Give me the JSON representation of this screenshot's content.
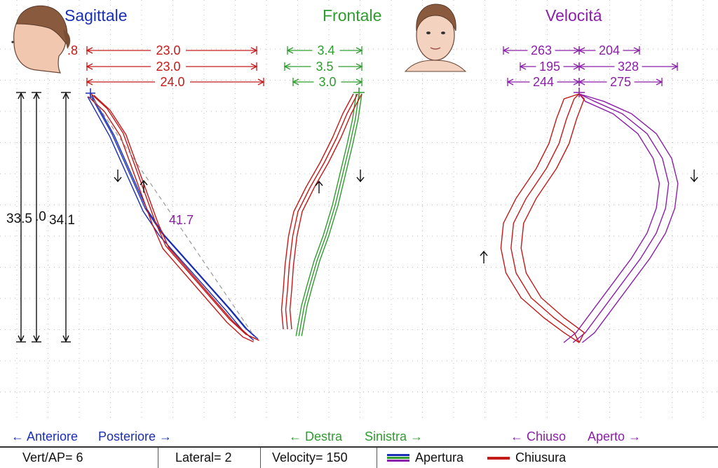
{
  "colors": {
    "sagittal": "#1b2fb5",
    "frontal": "#2e9c2e",
    "velocity": "#8b1fa8",
    "red": "#c41a1a",
    "grid": "#bdbdbd",
    "black": "#111111",
    "dashed": "#9a9a9a"
  },
  "titles": {
    "sagittal": "Sagittale",
    "frontal": "Frontale",
    "velocity": "Velocitá"
  },
  "chart_data": [
    {
      "type": "line",
      "title": "Sagittale",
      "measures_rows": [
        {
          "left": ".8",
          "right": "23.0"
        },
        {
          "right": "23.0"
        },
        {
          "right": "24.0"
        }
      ],
      "vertical_measures": [
        "33.5",
        ".0",
        "34.1"
      ],
      "diagonal_measure": "41.7",
      "direction_labels": [
        "← Anteriore",
        "Posteriore →"
      ],
      "series": [
        {
          "name": "Apertura",
          "trace": [
            [
              0,
              0
            ],
            [
              2,
              4
            ],
            [
              4,
              8
            ],
            [
              6,
              13
            ],
            [
              8,
              18
            ],
            [
              10,
              23
            ],
            [
              13,
              28
            ],
            [
              17,
              33
            ],
            [
              21,
              38
            ],
            [
              25,
              43
            ],
            [
              28,
              47
            ],
            [
              30,
              49
            ]
          ]
        },
        {
          "name": "Chiusura",
          "trace": [
            [
              0,
              0
            ],
            [
              3,
              3
            ],
            [
              6,
              8
            ],
            [
              8,
              14
            ],
            [
              10,
              20
            ],
            [
              12,
              26
            ],
            [
              14,
              31
            ],
            [
              18,
              36
            ],
            [
              22,
              41
            ],
            [
              26,
              46
            ],
            [
              29,
              49
            ],
            [
              31,
              50
            ]
          ]
        }
      ]
    },
    {
      "type": "line",
      "title": "Frontale",
      "measures_rows": [
        {
          "right": "3.4"
        },
        {
          "right": "3.5"
        },
        {
          "right": "3.0"
        }
      ],
      "direction_labels": [
        "← Destra",
        "Sinistra →"
      ],
      "series": [
        {
          "name": "Apertura",
          "trace": [
            [
              0,
              0
            ],
            [
              -0.2,
              5
            ],
            [
              -0.5,
              10
            ],
            [
              -0.9,
              16
            ],
            [
              -1.3,
              22
            ],
            [
              -1.8,
              28
            ],
            [
              -2.3,
              33
            ],
            [
              -2.7,
              38
            ],
            [
              -3.0,
              42
            ],
            [
              -3.2,
              46
            ],
            [
              -3.3,
              48
            ]
          ]
        },
        {
          "name": "Chiusura",
          "trace": [
            [
              0,
              0
            ],
            [
              -0.6,
              4
            ],
            [
              -1.2,
              9
            ],
            [
              -1.9,
              14
            ],
            [
              -2.7,
              19
            ],
            [
              -3.4,
              24
            ],
            [
              -3.7,
              29
            ],
            [
              -3.9,
              35
            ],
            [
              -4.0,
              40
            ],
            [
              -4.1,
              44
            ],
            [
              -4.0,
              48
            ]
          ]
        }
      ]
    },
    {
      "type": "line",
      "title": "Velocitá",
      "measures_rows": [
        {
          "left": "263",
          "right": "204"
        },
        {
          "left": "195",
          "right": "328"
        },
        {
          "left": "244",
          "right": "275"
        }
      ],
      "direction_labels": [
        "← Chiuso",
        "Aperto →"
      ],
      "series": [
        {
          "name": "Apertura",
          "trace": [
            [
              0,
              0
            ],
            [
              80,
              3
            ],
            [
              170,
              8
            ],
            [
              250,
              16
            ],
            [
              300,
              26
            ],
            [
              320,
              36
            ],
            [
              310,
              46
            ],
            [
              280,
              56
            ],
            [
              230,
              66
            ],
            [
              170,
              76
            ],
            [
              110,
              86
            ],
            [
              50,
              96
            ],
            [
              10,
              100
            ]
          ]
        },
        {
          "name": "Chiusura",
          "trace": [
            [
              0,
              0
            ],
            [
              -60,
              2
            ],
            [
              -90,
              10
            ],
            [
              -120,
              20
            ],
            [
              -170,
              30
            ],
            [
              -250,
              42
            ],
            [
              -300,
              52
            ],
            [
              -310,
              62
            ],
            [
              -290,
              72
            ],
            [
              -230,
              82
            ],
            [
              -140,
              90
            ],
            [
              -60,
              96
            ],
            [
              0,
              100
            ]
          ]
        }
      ]
    }
  ],
  "status_bar": {
    "vert_ap": "Vert/AP= 6",
    "lateral": "Lateral= 2",
    "velocity": "Velocity= 150",
    "legend_open": "Apertura",
    "legend_close": "Chiusura"
  }
}
